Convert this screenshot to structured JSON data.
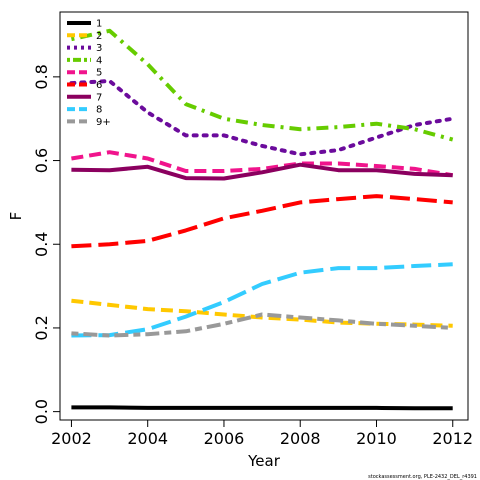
{
  "chart_data": {
    "type": "line",
    "title": "",
    "xlabel": "Year",
    "ylabel": "F",
    "xlim": [
      2001.7,
      2012.4
    ],
    "ylim": [
      -0.02,
      0.955
    ],
    "xticks": [
      2002,
      2004,
      2006,
      2008,
      2010,
      2012
    ],
    "yticks": [
      0.0,
      0.2,
      0.4,
      0.6,
      0.8
    ],
    "ytick_labels": [
      "0.0",
      "0.2",
      "0.4",
      "0.6",
      "0.8"
    ],
    "grid": false,
    "legend_position": "top-left",
    "x": [
      2002,
      2003,
      2004,
      2005,
      2006,
      2007,
      2008,
      2009,
      2010,
      2011,
      2012
    ],
    "series": [
      {
        "name": "1",
        "color": "#000000",
        "dash": "solid",
        "values": [
          0.01,
          0.01,
          0.009,
          0.009,
          0.009,
          0.009,
          0.009,
          0.009,
          0.009,
          0.008,
          0.008
        ]
      },
      {
        "name": "2",
        "color": "#FFC800",
        "dash": "dashed",
        "values": [
          0.265,
          0.255,
          0.245,
          0.24,
          0.232,
          0.225,
          0.22,
          0.213,
          0.21,
          0.208,
          0.205
        ]
      },
      {
        "name": "3",
        "color": "#6B0B9C",
        "dash": "dotted",
        "values": [
          0.785,
          0.79,
          0.715,
          0.66,
          0.66,
          0.635,
          0.615,
          0.625,
          0.655,
          0.685,
          0.7
        ]
      },
      {
        "name": "4",
        "color": "#66CC00",
        "dash": "dotdash",
        "values": [
          0.89,
          0.91,
          0.83,
          0.735,
          0.7,
          0.685,
          0.675,
          0.68,
          0.688,
          0.675,
          0.65
        ]
      },
      {
        "name": "5",
        "color": "#F0148C",
        "dash": "dashed",
        "values": [
          0.605,
          0.62,
          0.605,
          0.575,
          0.575,
          0.58,
          0.593,
          0.593,
          0.587,
          0.58,
          0.565
        ]
      },
      {
        "name": "6",
        "color": "#FF0000",
        "dash": "longdash",
        "values": [
          0.395,
          0.4,
          0.408,
          0.433,
          0.462,
          0.48,
          0.5,
          0.508,
          0.515,
          0.508,
          0.5
        ]
      },
      {
        "name": "7",
        "color": "#8B005F",
        "dash": "solid",
        "values": [
          0.578,
          0.577,
          0.585,
          0.558,
          0.557,
          0.572,
          0.59,
          0.577,
          0.577,
          0.568,
          0.565
        ]
      },
      {
        "name": "8",
        "color": "#33CCFF",
        "dash": "longdash",
        "values": [
          0.182,
          0.183,
          0.197,
          0.227,
          0.262,
          0.305,
          0.332,
          0.343,
          0.343,
          0.348,
          0.352
        ]
      },
      {
        "name": "9+",
        "color": "#999999",
        "dash": "twodash",
        "values": [
          0.187,
          0.182,
          0.185,
          0.192,
          0.21,
          0.232,
          0.225,
          0.218,
          0.21,
          0.205,
          0.2
        ]
      }
    ]
  },
  "footnote": "stockassessment.org, PLE-2432_DEL_r4391"
}
